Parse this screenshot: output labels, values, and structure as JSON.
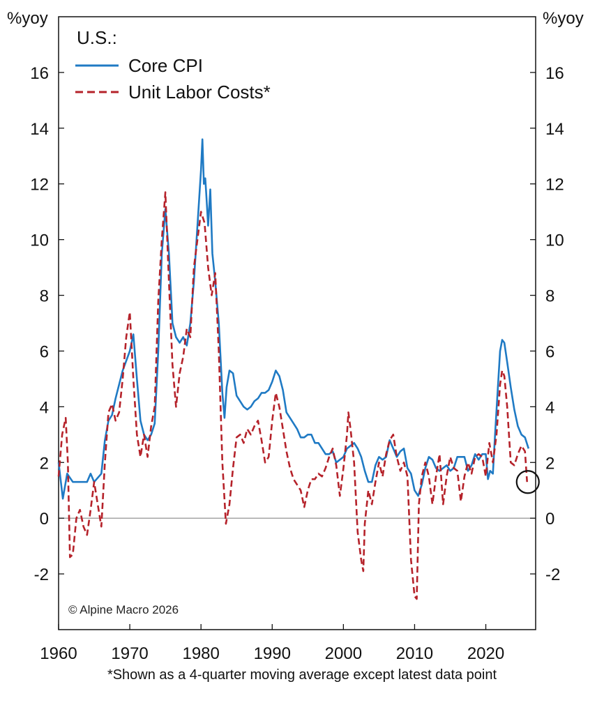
{
  "chart_data": {
    "type": "line",
    "title": "U.S.:",
    "ylabel_left": "%yoy",
    "ylabel_right": "%yoy",
    "ylim": [
      -4,
      18
    ],
    "xlim": [
      1960,
      2027
    ],
    "y_ticks": [
      "-2",
      "0",
      "2",
      "4",
      "6",
      "8",
      "10",
      "12",
      "14",
      "16"
    ],
    "x_ticks": [
      "1960",
      "1970",
      "1980",
      "1990",
      "2000",
      "2010",
      "2020"
    ],
    "legend_placement": "top-left",
    "copyright": "© Alpine Macro 2026",
    "footnote": "*Shown as a 4-quarter moving average except latest data point",
    "series": [
      {
        "name": "Core CPI",
        "color": "#1f7ac4",
        "style": "solid",
        "points": [
          [
            1960.0,
            2.0
          ],
          [
            1960.6,
            0.7
          ],
          [
            1961.2,
            1.6
          ],
          [
            1962.0,
            1.3
          ],
          [
            1963.0,
            1.3
          ],
          [
            1964.0,
            1.3
          ],
          [
            1964.5,
            1.6
          ],
          [
            1965.0,
            1.3
          ],
          [
            1966.0,
            1.6
          ],
          [
            1966.5,
            2.8
          ],
          [
            1967.0,
            3.5
          ],
          [
            1967.5,
            3.7
          ],
          [
            1968.0,
            4.3
          ],
          [
            1969.0,
            5.3
          ],
          [
            1970.0,
            6.0
          ],
          [
            1970.5,
            6.6
          ],
          [
            1971.0,
            5.0
          ],
          [
            1971.5,
            3.5
          ],
          [
            1972.0,
            3.0
          ],
          [
            1972.5,
            2.8
          ],
          [
            1973.0,
            3.0
          ],
          [
            1973.5,
            3.4
          ],
          [
            1974.0,
            6.0
          ],
          [
            1974.5,
            9.5
          ],
          [
            1975.0,
            11.1
          ],
          [
            1975.5,
            9.5
          ],
          [
            1976.0,
            7.0
          ],
          [
            1976.5,
            6.5
          ],
          [
            1977.0,
            6.3
          ],
          [
            1977.5,
            6.5
          ],
          [
            1978.0,
            6.2
          ],
          [
            1978.5,
            7.0
          ],
          [
            1979.0,
            8.5
          ],
          [
            1979.5,
            10.5
          ],
          [
            1980.0,
            12.5
          ],
          [
            1980.2,
            13.6
          ],
          [
            1980.4,
            12.0
          ],
          [
            1980.6,
            12.2
          ],
          [
            1980.8,
            11.4
          ],
          [
            1981.0,
            10.5
          ],
          [
            1981.3,
            11.8
          ],
          [
            1981.6,
            9.5
          ],
          [
            1982.0,
            8.5
          ],
          [
            1982.5,
            7.0
          ],
          [
            1983.0,
            4.5
          ],
          [
            1983.3,
            3.6
          ],
          [
            1983.6,
            4.7
          ],
          [
            1984.0,
            5.3
          ],
          [
            1984.5,
            5.2
          ],
          [
            1985.0,
            4.4
          ],
          [
            1985.5,
            4.2
          ],
          [
            1986.0,
            4.0
          ],
          [
            1986.5,
            3.9
          ],
          [
            1987.0,
            4.0
          ],
          [
            1987.5,
            4.2
          ],
          [
            1988.0,
            4.3
          ],
          [
            1988.5,
            4.5
          ],
          [
            1989.0,
            4.5
          ],
          [
            1989.5,
            4.6
          ],
          [
            1990.0,
            4.9
          ],
          [
            1990.5,
            5.3
          ],
          [
            1991.0,
            5.1
          ],
          [
            1991.5,
            4.6
          ],
          [
            1992.0,
            3.8
          ],
          [
            1992.5,
            3.6
          ],
          [
            1993.0,
            3.4
          ],
          [
            1993.5,
            3.2
          ],
          [
            1994.0,
            2.9
          ],
          [
            1994.5,
            2.9
          ],
          [
            1995.0,
            3.0
          ],
          [
            1995.5,
            3.0
          ],
          [
            1996.0,
            2.7
          ],
          [
            1996.5,
            2.7
          ],
          [
            1997.0,
            2.5
          ],
          [
            1997.5,
            2.3
          ],
          [
            1998.0,
            2.3
          ],
          [
            1998.5,
            2.4
          ],
          [
            1999.0,
            2.0
          ],
          [
            1999.5,
            2.1
          ],
          [
            2000.0,
            2.2
          ],
          [
            2000.5,
            2.5
          ],
          [
            2001.0,
            2.6
          ],
          [
            2001.5,
            2.7
          ],
          [
            2002.0,
            2.5
          ],
          [
            2002.5,
            2.2
          ],
          [
            2003.0,
            1.7
          ],
          [
            2003.5,
            1.3
          ],
          [
            2004.0,
            1.3
          ],
          [
            2004.5,
            1.9
          ],
          [
            2005.0,
            2.2
          ],
          [
            2005.5,
            2.1
          ],
          [
            2006.0,
            2.2
          ],
          [
            2006.5,
            2.8
          ],
          [
            2007.0,
            2.5
          ],
          [
            2007.5,
            2.2
          ],
          [
            2008.0,
            2.4
          ],
          [
            2008.5,
            2.5
          ],
          [
            2009.0,
            1.8
          ],
          [
            2009.5,
            1.6
          ],
          [
            2010.0,
            1.0
          ],
          [
            2010.5,
            0.8
          ],
          [
            2011.0,
            1.2
          ],
          [
            2011.5,
            1.8
          ],
          [
            2012.0,
            2.2
          ],
          [
            2012.5,
            2.1
          ],
          [
            2013.0,
            1.8
          ],
          [
            2013.5,
            1.7
          ],
          [
            2014.0,
            1.8
          ],
          [
            2014.5,
            1.9
          ],
          [
            2015.0,
            1.7
          ],
          [
            2015.5,
            1.8
          ],
          [
            2016.0,
            2.2
          ],
          [
            2016.5,
            2.2
          ],
          [
            2017.0,
            2.2
          ],
          [
            2017.5,
            1.7
          ],
          [
            2018.0,
            1.9
          ],
          [
            2018.5,
            2.3
          ],
          [
            2019.0,
            2.1
          ],
          [
            2019.5,
            2.3
          ],
          [
            2020.0,
            2.3
          ],
          [
            2020.3,
            1.4
          ],
          [
            2020.6,
            1.7
          ],
          [
            2021.0,
            1.6
          ],
          [
            2021.3,
            3.0
          ],
          [
            2021.6,
            4.3
          ],
          [
            2022.0,
            6.0
          ],
          [
            2022.3,
            6.4
          ],
          [
            2022.6,
            6.3
          ],
          [
            2023.0,
            5.6
          ],
          [
            2023.5,
            4.7
          ],
          [
            2024.0,
            3.9
          ],
          [
            2024.5,
            3.3
          ],
          [
            2025.0,
            3.0
          ],
          [
            2025.5,
            2.9
          ],
          [
            2026.0,
            2.5
          ]
        ]
      },
      {
        "name": "Unit Labor Costs*",
        "color": "#b5222a",
        "style": "dashed",
        "points": [
          [
            1960.0,
            1.5
          ],
          [
            1960.5,
            3.0
          ],
          [
            1961.0,
            3.6
          ],
          [
            1961.3,
            2.0
          ],
          [
            1961.6,
            -1.4
          ],
          [
            1962.0,
            -1.3
          ],
          [
            1962.5,
            0.0
          ],
          [
            1963.0,
            0.3
          ],
          [
            1963.5,
            -0.3
          ],
          [
            1964.0,
            -0.6
          ],
          [
            1964.5,
            0.3
          ],
          [
            1965.0,
            1.3
          ],
          [
            1965.5,
            0.5
          ],
          [
            1966.0,
            -0.3
          ],
          [
            1966.5,
            2.0
          ],
          [
            1967.0,
            3.8
          ],
          [
            1967.5,
            4.1
          ],
          [
            1968.0,
            3.5
          ],
          [
            1968.5,
            3.8
          ],
          [
            1969.0,
            5.0
          ],
          [
            1969.5,
            6.5
          ],
          [
            1970.0,
            7.4
          ],
          [
            1970.5,
            5.0
          ],
          [
            1971.0,
            3.0
          ],
          [
            1971.5,
            2.2
          ],
          [
            1972.0,
            3.0
          ],
          [
            1972.5,
            2.2
          ],
          [
            1973.0,
            3.3
          ],
          [
            1973.5,
            4.0
          ],
          [
            1974.0,
            7.8
          ],
          [
            1974.5,
            10.0
          ],
          [
            1975.0,
            11.7
          ],
          [
            1975.5,
            8.5
          ],
          [
            1976.0,
            5.5
          ],
          [
            1976.5,
            4.0
          ],
          [
            1977.0,
            5.2
          ],
          [
            1977.5,
            5.8
          ],
          [
            1978.0,
            6.8
          ],
          [
            1978.5,
            6.5
          ],
          [
            1979.0,
            9.0
          ],
          [
            1979.5,
            10.0
          ],
          [
            1980.0,
            11.0
          ],
          [
            1980.5,
            10.6
          ],
          [
            1981.0,
            9.0
          ],
          [
            1981.5,
            8.0
          ],
          [
            1982.0,
            8.8
          ],
          [
            1982.5,
            6.0
          ],
          [
            1983.0,
            2.0
          ],
          [
            1983.5,
            -0.2
          ],
          [
            1984.0,
            0.5
          ],
          [
            1984.5,
            1.8
          ],
          [
            1985.0,
            2.9
          ],
          [
            1985.5,
            3.0
          ],
          [
            1986.0,
            2.7
          ],
          [
            1986.5,
            3.2
          ],
          [
            1987.0,
            3.0
          ],
          [
            1987.5,
            3.3
          ],
          [
            1988.0,
            3.5
          ],
          [
            1988.5,
            2.8
          ],
          [
            1989.0,
            2.0
          ],
          [
            1989.5,
            2.2
          ],
          [
            1990.0,
            3.5
          ],
          [
            1990.5,
            4.5
          ],
          [
            1991.0,
            4.0
          ],
          [
            1991.5,
            3.2
          ],
          [
            1992.0,
            2.4
          ],
          [
            1992.5,
            1.8
          ],
          [
            1993.0,
            1.4
          ],
          [
            1993.5,
            1.2
          ],
          [
            1994.0,
            1.0
          ],
          [
            1994.5,
            0.4
          ],
          [
            1995.0,
            1.0
          ],
          [
            1995.5,
            1.4
          ],
          [
            1996.0,
            1.4
          ],
          [
            1996.5,
            1.6
          ],
          [
            1997.0,
            1.5
          ],
          [
            1997.5,
            1.8
          ],
          [
            1998.0,
            2.2
          ],
          [
            1998.5,
            2.5
          ],
          [
            1999.0,
            1.9
          ],
          [
            1999.5,
            0.8
          ],
          [
            2000.0,
            1.8
          ],
          [
            2000.5,
            3.0
          ],
          [
            2000.7,
            3.8
          ],
          [
            2001.0,
            3.2
          ],
          [
            2001.5,
            2.0
          ],
          [
            2002.0,
            -0.5
          ],
          [
            2002.5,
            -1.5
          ],
          [
            2002.8,
            -1.9
          ],
          [
            2003.0,
            -0.2
          ],
          [
            2003.5,
            1.0
          ],
          [
            2004.0,
            0.5
          ],
          [
            2004.5,
            1.3
          ],
          [
            2005.0,
            2.0
          ],
          [
            2005.5,
            1.5
          ],
          [
            2006.0,
            2.3
          ],
          [
            2006.5,
            2.8
          ],
          [
            2007.0,
            3.0
          ],
          [
            2007.5,
            2.2
          ],
          [
            2008.0,
            1.7
          ],
          [
            2008.5,
            2.0
          ],
          [
            2009.0,
            1.5
          ],
          [
            2009.5,
            -1.5
          ],
          [
            2010.0,
            -2.8
          ],
          [
            2010.3,
            -2.9
          ],
          [
            2010.6,
            0.5
          ],
          [
            2011.0,
            1.5
          ],
          [
            2011.5,
            2.0
          ],
          [
            2012.0,
            1.5
          ],
          [
            2012.5,
            0.5
          ],
          [
            2013.0,
            1.5
          ],
          [
            2013.5,
            2.3
          ],
          [
            2014.0,
            0.5
          ],
          [
            2014.5,
            1.5
          ],
          [
            2015.0,
            2.2
          ],
          [
            2015.5,
            1.8
          ],
          [
            2016.0,
            1.7
          ],
          [
            2016.5,
            0.6
          ],
          [
            2017.0,
            1.5
          ],
          [
            2017.5,
            2.0
          ],
          [
            2018.0,
            1.6
          ],
          [
            2018.5,
            2.2
          ],
          [
            2019.0,
            2.3
          ],
          [
            2019.5,
            2.2
          ],
          [
            2020.0,
            1.5
          ],
          [
            2020.5,
            2.7
          ],
          [
            2021.0,
            2.0
          ],
          [
            2021.5,
            3.0
          ],
          [
            2022.0,
            4.8
          ],
          [
            2022.3,
            5.3
          ],
          [
            2022.6,
            5.1
          ],
          [
            2023.0,
            4.0
          ],
          [
            2023.5,
            2.0
          ],
          [
            2024.0,
            1.9
          ],
          [
            2024.5,
            2.3
          ],
          [
            2025.0,
            2.6
          ],
          [
            2025.5,
            2.4
          ],
          [
            2025.8,
            1.3
          ]
        ]
      }
    ]
  }
}
